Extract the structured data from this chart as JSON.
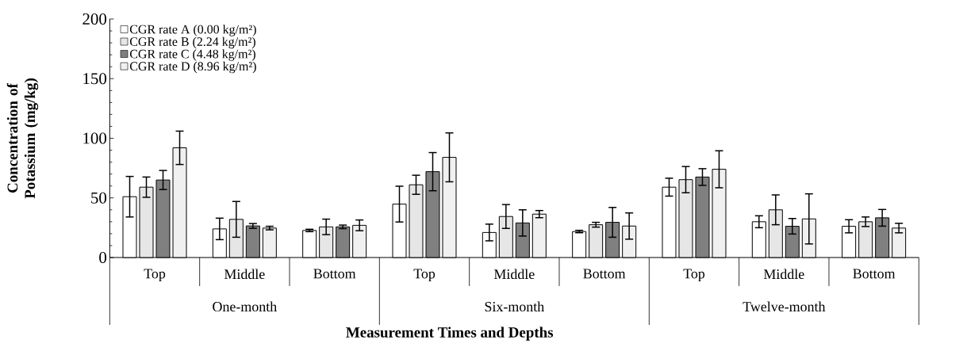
{
  "chart_data": {
    "type": "bar",
    "xlabel": "Measurement Times and Depths",
    "ylabel": "Concentration of Potassium (mg/kg)",
    "categories": [
      "Top",
      "Middle",
      "Bottom",
      "Top",
      "Middle",
      "Bottom",
      "Top",
      "Middle",
      "Bottom"
    ],
    "annotations": [
      "One-month",
      "Six-month",
      "Twelve-month"
    ],
    "series": [
      {
        "name": "CGR rate A (0.00 kg/m²)",
        "color": "#ffffff",
        "values": [
          51,
          24,
          22.7,
          44.8,
          21,
          21.8,
          59,
          30,
          26.2
        ],
        "errors": [
          17,
          9,
          1,
          15,
          7,
          1,
          7.5,
          5,
          5.5
        ]
      },
      {
        "name": "CGR rate B (2.24 kg/m²)",
        "color": "#e6e6e6",
        "values": [
          59,
          32,
          25.7,
          61,
          34.4,
          27.5,
          65.3,
          40,
          30
        ],
        "errors": [
          8.5,
          15,
          6.5,
          8,
          10,
          2,
          11,
          12.5,
          4
        ]
      },
      {
        "name": "CGR rate C (4.48 kg/m²)",
        "color": "#808080",
        "values": [
          65,
          26.5,
          25.7,
          72,
          29,
          29.5,
          67.5,
          26.2,
          33.3
        ],
        "errors": [
          8,
          2,
          1.5,
          16,
          11,
          12.5,
          7,
          6.5,
          7
        ]
      },
      {
        "name": "CGR rate D (8.96 kg/m²)",
        "color": "#f0f0f0",
        "values": [
          92,
          24.7,
          27,
          84,
          36.4,
          26.4,
          74,
          32.4,
          24.7
        ],
        "errors": [
          14,
          1.5,
          4.5,
          20.5,
          3,
          11,
          15.5,
          21,
          4
        ]
      }
    ],
    "ylim": [
      0,
      200
    ],
    "yticks": [
      0,
      50,
      100,
      150,
      200
    ],
    "legend": "top left",
    "grid": false
  }
}
